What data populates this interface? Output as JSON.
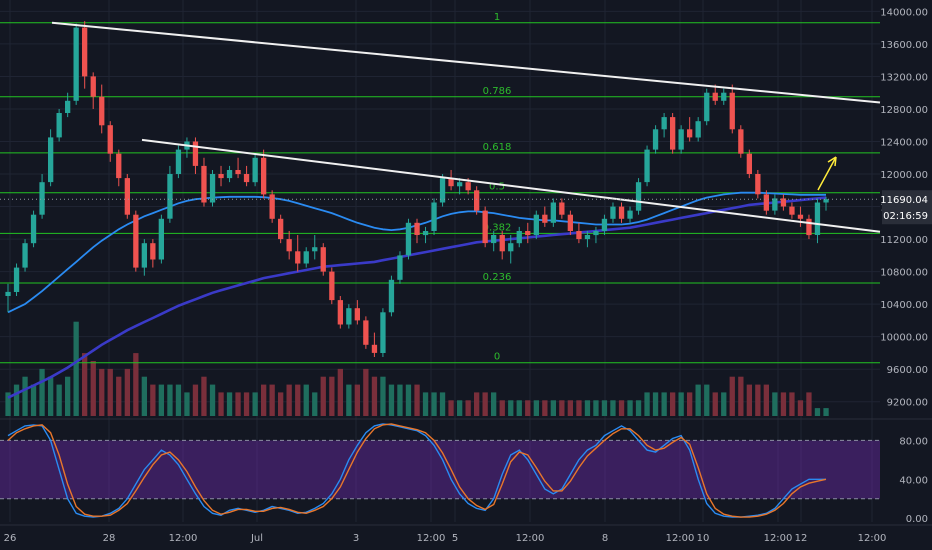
{
  "chart_data": {
    "type": "candlestick",
    "price_axis": {
      "ticks": [
        "14000.00",
        "13600.00",
        "13200.00",
        "12800.00",
        "12400.00",
        "12000.00",
        "11600.00",
        "11200.00",
        "10800.00",
        "10400.00",
        "10000.00",
        "9600.00",
        "9200.00"
      ],
      "tick_values": [
        14000,
        13600,
        13200,
        12800,
        12400,
        12000,
        11600,
        11200,
        10800,
        10400,
        10000,
        9600,
        9200
      ],
      "range": [
        9000,
        14140
      ]
    },
    "oscillator_axis": {
      "ticks": [
        "80.00",
        "40.00",
        "0.00"
      ],
      "tick_values": [
        80,
        40,
        0
      ],
      "range": [
        -4,
        100
      ]
    },
    "time_axis": {
      "ticks": [
        "26",
        "28",
        "12:00",
        "Jul",
        "3",
        "12:00",
        "5",
        "12:00",
        "8",
        "12:00",
        "10",
        "12:00",
        "12",
        "12:00"
      ]
    },
    "current_price": {
      "label": "11690.04",
      "value": 11690.04,
      "countdown": "02:16:59"
    },
    "fib_levels": [
      {
        "label": "1",
        "price": 13860
      },
      {
        "label": "0.786",
        "price": 12950
      },
      {
        "label": "0.618",
        "price": 12260
      },
      {
        "label": "0.5",
        "price": 11770
      },
      {
        "label": "0.382",
        "price": 11270
      },
      {
        "label": "0.236",
        "price": 10660
      },
      {
        "label": "0",
        "price": 9680
      }
    ],
    "trendlines": [
      {
        "from": [
          0,
          13860
        ],
        "to": [
          104,
          12880
        ]
      },
      {
        "from": [
          17,
          12420
        ],
        "to": [
          104,
          11290
        ]
      }
    ],
    "candles": [
      [
        10500,
        10650,
        10300,
        10550
      ],
      [
        10550,
        10900,
        10500,
        10850
      ],
      [
        10850,
        11200,
        10800,
        11150
      ],
      [
        11150,
        11550,
        11100,
        11500
      ],
      [
        11500,
        12000,
        11450,
        11900
      ],
      [
        11900,
        12550,
        11850,
        12450
      ],
      [
        12450,
        12800,
        12400,
        12750
      ],
      [
        12750,
        13000,
        12700,
        12900
      ],
      [
        12900,
        13850,
        12850,
        13800
      ],
      [
        13800,
        13880,
        13050,
        13200
      ],
      [
        13200,
        13250,
        12800,
        12950
      ],
      [
        12950,
        13100,
        12500,
        12600
      ],
      [
        12600,
        12650,
        12150,
        12250
      ],
      [
        12250,
        12300,
        11850,
        11950
      ],
      [
        11950,
        12000,
        11450,
        11500
      ],
      [
        11500,
        11550,
        10800,
        10850
      ],
      [
        10850,
        11200,
        10750,
        11150
      ],
      [
        11150,
        11200,
        10850,
        10950
      ],
      [
        10950,
        11500,
        10900,
        11450
      ],
      [
        11450,
        12100,
        11400,
        12000
      ],
      [
        12000,
        12350,
        11950,
        12300
      ],
      [
        12300,
        12450,
        12200,
        12400
      ],
      [
        12400,
        12450,
        12000,
        12100
      ],
      [
        12100,
        12200,
        11600,
        11650
      ],
      [
        11650,
        12050,
        11600,
        12000
      ],
      [
        12000,
        12100,
        11850,
        11950
      ],
      [
        11950,
        12100,
        11900,
        12050
      ],
      [
        12050,
        12200,
        11950,
        12000
      ],
      [
        12000,
        12100,
        11850,
        11900
      ],
      [
        11900,
        12250,
        11850,
        12200
      ],
      [
        12200,
        12300,
        11700,
        11750
      ],
      [
        11750,
        11800,
        11400,
        11450
      ],
      [
        11450,
        11500,
        11150,
        11200
      ],
      [
        11200,
        11300,
        10950,
        11050
      ],
      [
        11050,
        11250,
        10800,
        10900
      ],
      [
        10900,
        11100,
        10850,
        11050
      ],
      [
        11050,
        11250,
        10950,
        11100
      ],
      [
        11100,
        11150,
        10750,
        10800
      ],
      [
        10800,
        10850,
        10400,
        10450
      ],
      [
        10450,
        10500,
        10100,
        10150
      ],
      [
        10150,
        10400,
        10100,
        10350
      ],
      [
        10350,
        10450,
        10150,
        10200
      ],
      [
        10200,
        10250,
        9850,
        9900
      ],
      [
        9900,
        10050,
        9750,
        9800
      ],
      [
        9800,
        10350,
        9750,
        10300
      ],
      [
        10300,
        10750,
        10250,
        10700
      ],
      [
        10700,
        11050,
        10650,
        11000
      ],
      [
        11000,
        11450,
        10950,
        11400
      ],
      [
        11400,
        11450,
        11150,
        11250
      ],
      [
        11250,
        11350,
        11150,
        11300
      ],
      [
        11300,
        11700,
        11250,
        11650
      ],
      [
        11650,
        12000,
        11600,
        11950
      ],
      [
        11950,
        12050,
        11800,
        11850
      ],
      [
        11850,
        11950,
        11750,
        11900
      ],
      [
        11900,
        11950,
        11750,
        11800
      ],
      [
        11800,
        11850,
        11500,
        11550
      ],
      [
        11550,
        11600,
        11100,
        11150
      ],
      [
        11150,
        11300,
        11050,
        11250
      ],
      [
        11250,
        11300,
        10950,
        11050
      ],
      [
        11050,
        11250,
        10900,
        11150
      ],
      [
        11150,
        11350,
        11100,
        11300
      ],
      [
        11300,
        11400,
        11150,
        11250
      ],
      [
        11250,
        11550,
        11200,
        11500
      ],
      [
        11500,
        11600,
        11350,
        11400
      ],
      [
        11400,
        11700,
        11350,
        11650
      ],
      [
        11650,
        11700,
        11450,
        11500
      ],
      [
        11500,
        11550,
        11250,
        11300
      ],
      [
        11300,
        11400,
        11150,
        11200
      ],
      [
        11200,
        11300,
        11100,
        11250
      ],
      [
        11250,
        11350,
        11150,
        11300
      ],
      [
        11300,
        11500,
        11250,
        11450
      ],
      [
        11450,
        11650,
        11400,
        11600
      ],
      [
        11600,
        11650,
        11400,
        11450
      ],
      [
        11450,
        11600,
        11400,
        11550
      ],
      [
        11550,
        11950,
        11500,
        11900
      ],
      [
        11900,
        12350,
        11850,
        12300
      ],
      [
        12300,
        12600,
        12250,
        12550
      ],
      [
        12550,
        12750,
        12450,
        12700
      ],
      [
        12700,
        12750,
        12250,
        12300
      ],
      [
        12300,
        12600,
        12250,
        12550
      ],
      [
        12550,
        12700,
        12400,
        12450
      ],
      [
        12450,
        12700,
        12400,
        12650
      ],
      [
        12650,
        13050,
        12600,
        13000
      ],
      [
        13000,
        13100,
        12850,
        12900
      ],
      [
        12900,
        13050,
        12850,
        13000
      ],
      [
        13000,
        13100,
        12500,
        12550
      ],
      [
        12550,
        12600,
        12200,
        12250
      ],
      [
        12250,
        12300,
        11950,
        12000
      ],
      [
        12000,
        12050,
        11700,
        11750
      ],
      [
        11750,
        11800,
        11500,
        11550
      ],
      [
        11550,
        11750,
        11500,
        11700
      ],
      [
        11700,
        11750,
        11550,
        11600
      ],
      [
        11600,
        11650,
        11450,
        11500
      ],
      [
        11500,
        11600,
        11350,
        11450
      ],
      [
        11450,
        11500,
        11200,
        11250
      ],
      [
        11250,
        11700,
        11150,
        11650
      ],
      [
        11650,
        11720,
        11550,
        11690
      ]
    ],
    "volumes": [
      3,
      4,
      5,
      4,
      6,
      5,
      4,
      5,
      12,
      8,
      7,
      6,
      6,
      5,
      6,
      8,
      5,
      4,
      4,
      4,
      4,
      3,
      4,
      5,
      4,
      3,
      3,
      3,
      3,
      3,
      4,
      4,
      3,
      4,
      4,
      4,
      3,
      5,
      5,
      6,
      4,
      4,
      6,
      5,
      5,
      4,
      4,
      4,
      4,
      3,
      3,
      3,
      2,
      2,
      2,
      3,
      3,
      3,
      2,
      2,
      2,
      2,
      2,
      2,
      2,
      2,
      2,
      2,
      2,
      2,
      2,
      2,
      2,
      2,
      2,
      3,
      3,
      3,
      3,
      3,
      3,
      4,
      4,
      3,
      3,
      5,
      5,
      4,
      4,
      4,
      3,
      3,
      3,
      2,
      3,
      1,
      1
    ],
    "ma_series": [
      {
        "color": "#2a8bf2",
        "values": [
          10300,
          10350,
          10400,
          10480,
          10560,
          10650,
          10740,
          10830,
          10920,
          11010,
          11100,
          11180,
          11250,
          11320,
          11380,
          11430,
          11480,
          11520,
          11560,
          11600,
          11640,
          11670,
          11690,
          11700,
          11710,
          11715,
          11720,
          11720,
          11720,
          11720,
          11715,
          11705,
          11690,
          11670,
          11640,
          11610,
          11580,
          11550,
          11520,
          11480,
          11440,
          11400,
          11370,
          11340,
          11320,
          11310,
          11320,
          11340,
          11370,
          11400,
          11440,
          11480,
          11510,
          11530,
          11540,
          11540,
          11530,
          11520,
          11500,
          11480,
          11460,
          11450,
          11440,
          11430,
          11430,
          11420,
          11410,
          11400,
          11390,
          11380,
          11380,
          11380,
          11380,
          11390,
          11410,
          11440,
          11480,
          11520,
          11560,
          11600,
          11640,
          11680,
          11710,
          11730,
          11750,
          11760,
          11770,
          11770,
          11770,
          11765,
          11760,
          11755,
          11750,
          11745,
          11745,
          11745,
          11745
        ]
      },
      {
        "color": "#3a3ac8",
        "values": [
          9250,
          9300,
          9350,
          9400,
          9450,
          9500,
          9560,
          9620,
          9690,
          9760,
          9830,
          9900,
          9960,
          10020,
          10080,
          10130,
          10180,
          10230,
          10280,
          10330,
          10380,
          10420,
          10460,
          10500,
          10540,
          10570,
          10600,
          10630,
          10660,
          10690,
          10720,
          10740,
          10760,
          10780,
          10800,
          10820,
          10840,
          10860,
          10870,
          10880,
          10890,
          10900,
          10910,
          10920,
          10940,
          10960,
          10980,
          11000,
          11020,
          11040,
          11060,
          11080,
          11100,
          11120,
          11140,
          11160,
          11170,
          11180,
          11190,
          11200,
          11210,
          11220,
          11230,
          11240,
          11250,
          11260,
          11270,
          11280,
          11290,
          11300,
          11310,
          11320,
          11330,
          11340,
          11360,
          11380,
          11400,
          11420,
          11440,
          11460,
          11480,
          11500,
          11520,
          11540,
          11560,
          11580,
          11600,
          11620,
          11630,
          11640,
          11650,
          11660,
          11670,
          11680,
          11690,
          11700,
          11710
        ]
      }
    ],
    "stoch_rsi": [
      {
        "color": "#2a8bf2",
        "values": [
          85,
          90,
          95,
          96,
          95,
          80,
          50,
          20,
          5,
          2,
          1,
          2,
          5,
          10,
          20,
          35,
          50,
          60,
          70,
          65,
          55,
          40,
          25,
          12,
          5,
          3,
          8,
          10,
          8,
          6,
          8,
          12,
          10,
          8,
          5,
          6,
          10,
          15,
          25,
          40,
          60,
          75,
          88,
          95,
          97,
          96,
          94,
          92,
          90,
          85,
          75,
          60,
          40,
          25,
          15,
          10,
          8,
          20,
          45,
          65,
          70,
          60,
          45,
          30,
          25,
          30,
          45,
          60,
          70,
          75,
          85,
          90,
          95,
          90,
          80,
          70,
          68,
          75,
          82,
          85,
          70,
          40,
          15,
          5,
          2,
          1,
          1,
          2,
          3,
          5,
          10,
          20,
          30,
          35,
          40,
          40,
          40
        ]
      },
      {
        "color": "#e8762b",
        "values": [
          80,
          88,
          92,
          95,
          96,
          88,
          65,
          35,
          12,
          4,
          2,
          2,
          3,
          8,
          15,
          28,
          42,
          55,
          65,
          68,
          60,
          48,
          32,
          18,
          8,
          4,
          6,
          9,
          9,
          7,
          7,
          10,
          11,
          9,
          6,
          5,
          8,
          12,
          20,
          32,
          50,
          68,
          82,
          92,
          96,
          97,
          95,
          93,
          91,
          88,
          80,
          67,
          50,
          32,
          20,
          13,
          9,
          14,
          35,
          58,
          68,
          65,
          52,
          38,
          28,
          28,
          38,
          52,
          64,
          72,
          80,
          87,
          92,
          92,
          85,
          75,
          70,
          72,
          78,
          83,
          76,
          52,
          25,
          10,
          4,
          2,
          1,
          1,
          2,
          4,
          8,
          15,
          25,
          32,
          36,
          38,
          40
        ]
      }
    ]
  }
}
